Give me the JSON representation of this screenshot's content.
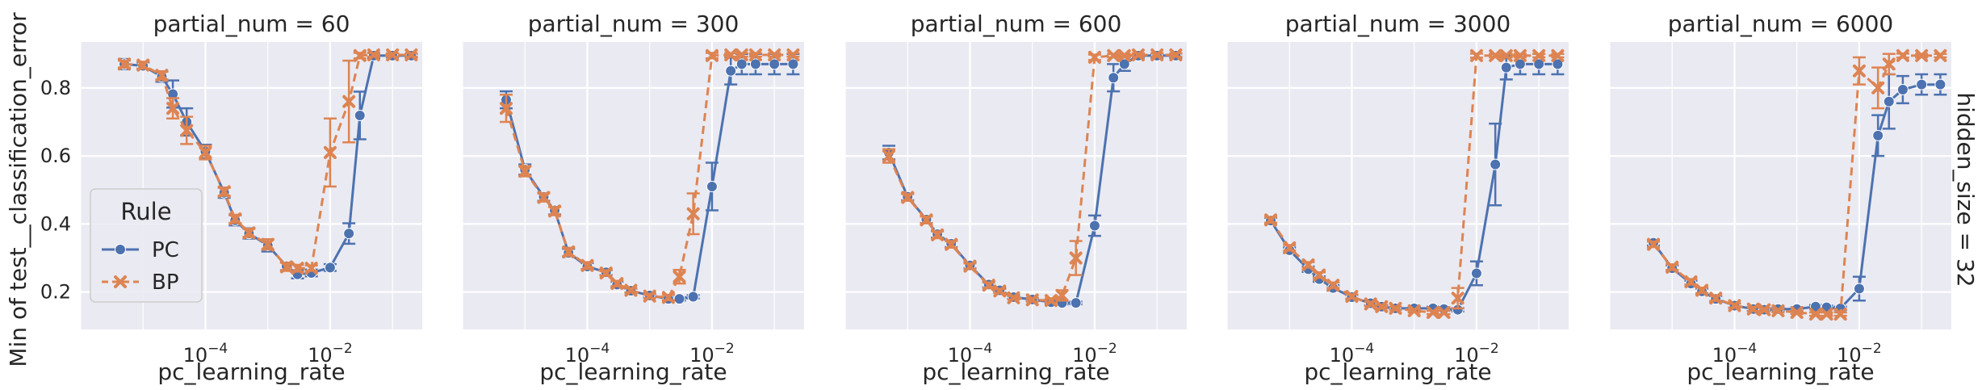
{
  "colors": {
    "panel_bg": "#EAEAF2",
    "grid": "#FFFFFF",
    "PC": "#4C72B0",
    "BP": "#DD8452",
    "text": "#262626"
  },
  "ylabel": "Min of test__classification_error",
  "row_label": "hidden_size = 32",
  "legend": {
    "title": "Rule",
    "entries": [
      {
        "name": "PC",
        "marker": "circle",
        "dash": "solid"
      },
      {
        "name": "BP",
        "marker": "x",
        "dash": "dashed"
      }
    ]
  },
  "chart_data": [
    {
      "type": "line",
      "title": "partial_num = 60",
      "xlabel": "pc_learning_rate",
      "xscale": "log",
      "xlim": [
        1e-06,
        0.3
      ],
      "ylim": [
        0.09,
        0.935
      ],
      "xticks": [
        {
          "v": 0.0001,
          "base": "10",
          "exp": "−4"
        },
        {
          "v": 0.01,
          "base": "10",
          "exp": "−2"
        }
      ],
      "yticks": [
        {
          "v": 0.2,
          "label": "0.2"
        },
        {
          "v": 0.4,
          "label": "0.4"
        },
        {
          "v": 0.6,
          "label": "0.6"
        },
        {
          "v": 0.8,
          "label": "0.8"
        }
      ],
      "series": [
        {
          "name": "PC",
          "x": [
            5e-06,
            1e-05,
            2e-05,
            3e-05,
            5e-05,
            0.0001,
            0.0002,
            0.0003,
            0.0005,
            0.001,
            0.002,
            0.003,
            0.005,
            0.01,
            0.02,
            0.03,
            0.05,
            0.1,
            0.2
          ],
          "y": [
            0.87,
            0.865,
            0.833,
            0.782,
            0.7,
            0.613,
            0.492,
            0.411,
            0.372,
            0.337,
            0.276,
            0.252,
            0.256,
            0.272,
            0.372,
            0.719,
            0.895,
            0.895,
            0.895
          ],
          "err": [
            0.015,
            0.01,
            0.015,
            0.04,
            0.04,
            0.02,
            0.015,
            0.015,
            0.015,
            0.018,
            0.012,
            0.012,
            0.01,
            0.01,
            0.03,
            0.07,
            0.008,
            0.005,
            0.005
          ]
        },
        {
          "name": "BP",
          "x": [
            5e-06,
            1e-05,
            2e-05,
            3e-05,
            5e-05,
            0.0001,
            0.0002,
            0.0003,
            0.0005,
            0.001,
            0.002,
            0.003,
            0.005,
            0.01,
            0.02,
            0.03,
            0.05,
            0.1,
            0.2
          ],
          "y": [
            0.87,
            0.867,
            0.837,
            0.74,
            0.675,
            0.61,
            0.495,
            0.415,
            0.374,
            0.34,
            0.274,
            0.27,
            0.27,
            0.61,
            0.76,
            0.895,
            0.897,
            0.897,
            0.897
          ],
          "err": [
            0.01,
            0.01,
            0.012,
            0.03,
            0.04,
            0.02,
            0.012,
            0.012,
            0.012,
            0.015,
            0.012,
            0.01,
            0.008,
            0.1,
            0.12,
            0.008,
            0.005,
            0.005,
            0.005
          ]
        }
      ]
    },
    {
      "type": "line",
      "title": "partial_num = 300",
      "xlabel": "pc_learning_rate",
      "xscale": "log",
      "xlim": [
        1e-06,
        0.3
      ],
      "ylim": [
        0.09,
        0.935
      ],
      "xticks": [
        {
          "v": 0.0001,
          "base": "10",
          "exp": "−4"
        },
        {
          "v": 0.01,
          "base": "10",
          "exp": "−2"
        }
      ],
      "yticks": [
        {
          "v": 0.2,
          "label": ""
        },
        {
          "v": 0.4,
          "label": ""
        },
        {
          "v": 0.6,
          "label": ""
        },
        {
          "v": 0.8,
          "label": ""
        }
      ],
      "series": [
        {
          "name": "PC",
          "x": [
            5e-06,
            1e-05,
            2e-05,
            3e-05,
            5e-05,
            0.0001,
            0.0002,
            0.0003,
            0.0005,
            0.001,
            0.002,
            0.003,
            0.005,
            0.01,
            0.02,
            0.03,
            0.05,
            0.1,
            0.2
          ],
          "y": [
            0.765,
            0.56,
            0.48,
            0.44,
            0.315,
            0.275,
            0.258,
            0.222,
            0.204,
            0.19,
            0.18,
            0.18,
            0.186,
            0.51,
            0.85,
            0.87,
            0.87,
            0.87,
            0.87
          ],
          "err": [
            0.025,
            0.015,
            0.012,
            0.012,
            0.012,
            0.01,
            0.008,
            0.008,
            0.006,
            0.006,
            0.005,
            0.005,
            0.005,
            0.07,
            0.04,
            0.03,
            0.03,
            0.03,
            0.03
          ]
        },
        {
          "name": "BP",
          "x": [
            5e-06,
            1e-05,
            2e-05,
            3e-05,
            5e-05,
            0.0001,
            0.0002,
            0.0003,
            0.0005,
            0.001,
            0.002,
            0.003,
            0.005,
            0.01,
            0.02,
            0.03,
            0.05,
            0.1,
            0.2
          ],
          "y": [
            0.74,
            0.555,
            0.478,
            0.438,
            0.318,
            0.278,
            0.256,
            0.225,
            0.205,
            0.188,
            0.184,
            0.245,
            0.43,
            0.895,
            0.897,
            0.897,
            0.897,
            0.897,
            0.897
          ],
          "err": [
            0.04,
            0.015,
            0.012,
            0.012,
            0.012,
            0.01,
            0.008,
            0.008,
            0.006,
            0.006,
            0.008,
            0.02,
            0.06,
            0.008,
            0.005,
            0.005,
            0.005,
            0.005,
            0.005
          ]
        }
      ]
    },
    {
      "type": "line",
      "title": "partial_num = 600",
      "xlabel": "pc_learning_rate",
      "xscale": "log",
      "xlim": [
        1e-06,
        0.3
      ],
      "ylim": [
        0.09,
        0.935
      ],
      "xticks": [
        {
          "v": 0.0001,
          "base": "10",
          "exp": "−4"
        },
        {
          "v": 0.01,
          "base": "10",
          "exp": "−2"
        }
      ],
      "yticks": [
        {
          "v": 0.2,
          "label": ""
        },
        {
          "v": 0.4,
          "label": ""
        },
        {
          "v": 0.6,
          "label": ""
        },
        {
          "v": 0.8,
          "label": ""
        }
      ],
      "series": [
        {
          "name": "PC",
          "x": [
            5e-06,
            1e-05,
            2e-05,
            3e-05,
            5e-05,
            0.0001,
            0.0002,
            0.0003,
            0.0005,
            0.001,
            0.002,
            0.003,
            0.005,
            0.01,
            0.02,
            0.03,
            0.05,
            0.1,
            0.2
          ],
          "y": [
            0.61,
            0.48,
            0.413,
            0.37,
            0.342,
            0.278,
            0.222,
            0.205,
            0.185,
            0.178,
            0.17,
            0.168,
            0.168,
            0.395,
            0.83,
            0.87,
            0.895,
            0.895,
            0.895
          ],
          "err": [
            0.02,
            0.01,
            0.01,
            0.01,
            0.01,
            0.008,
            0.008,
            0.006,
            0.005,
            0.005,
            0.004,
            0.004,
            0.004,
            0.03,
            0.04,
            0.02,
            0.006,
            0.006,
            0.006
          ]
        },
        {
          "name": "BP",
          "x": [
            5e-06,
            1e-05,
            2e-05,
            3e-05,
            5e-05,
            0.0001,
            0.0002,
            0.0003,
            0.0005,
            0.001,
            0.002,
            0.003,
            0.005,
            0.01,
            0.02,
            0.03,
            0.05,
            0.1,
            0.2
          ],
          "y": [
            0.6,
            0.478,
            0.412,
            0.368,
            0.34,
            0.276,
            0.22,
            0.203,
            0.183,
            0.177,
            0.175,
            0.19,
            0.3,
            0.89,
            0.895,
            0.895,
            0.897,
            0.897,
            0.897
          ],
          "err": [
            0.02,
            0.01,
            0.01,
            0.01,
            0.01,
            0.008,
            0.008,
            0.006,
            0.005,
            0.005,
            0.006,
            0.015,
            0.05,
            0.008,
            0.005,
            0.005,
            0.005,
            0.005,
            0.005
          ]
        }
      ]
    },
    {
      "type": "line",
      "title": "partial_num = 3000",
      "xlabel": "pc_learning_rate",
      "xscale": "log",
      "xlim": [
        1e-06,
        0.3
      ],
      "ylim": [
        0.09,
        0.935
      ],
      "xticks": [
        {
          "v": 0.0001,
          "base": "10",
          "exp": "−4"
        },
        {
          "v": 0.01,
          "base": "10",
          "exp": "−2"
        }
      ],
      "yticks": [
        {
          "v": 0.2,
          "label": ""
        },
        {
          "v": 0.4,
          "label": ""
        },
        {
          "v": 0.6,
          "label": ""
        },
        {
          "v": 0.8,
          "label": ""
        }
      ],
      "series": [
        {
          "name": "PC",
          "x": [
            5e-06,
            1e-05,
            2e-05,
            3e-05,
            5e-05,
            0.0001,
            0.0002,
            0.0003,
            0.0005,
            0.001,
            0.002,
            0.003,
            0.005,
            0.01,
            0.02,
            0.03,
            0.05,
            0.1,
            0.2
          ],
          "y": [
            0.41,
            0.323,
            0.267,
            0.238,
            0.212,
            0.185,
            0.167,
            0.157,
            0.152,
            0.152,
            0.152,
            0.15,
            0.148,
            0.255,
            0.575,
            0.86,
            0.87,
            0.87,
            0.87
          ],
          "err": [
            0.008,
            0.008,
            0.008,
            0.008,
            0.008,
            0.006,
            0.006,
            0.005,
            0.005,
            0.005,
            0.005,
            0.005,
            0.005,
            0.035,
            0.12,
            0.035,
            0.03,
            0.03,
            0.03
          ]
        },
        {
          "name": "BP",
          "x": [
            5e-06,
            1e-05,
            2e-05,
            3e-05,
            5e-05,
            0.0001,
            0.0002,
            0.0003,
            0.0005,
            0.001,
            0.002,
            0.003,
            0.005,
            0.01,
            0.02,
            0.03,
            0.05,
            0.1,
            0.2
          ],
          "y": [
            0.412,
            0.33,
            0.28,
            0.25,
            0.22,
            0.187,
            0.165,
            0.157,
            0.152,
            0.145,
            0.14,
            0.14,
            0.182,
            0.895,
            0.895,
            0.895,
            0.895,
            0.895,
            0.895
          ],
          "err": [
            0.008,
            0.008,
            0.008,
            0.008,
            0.008,
            0.006,
            0.006,
            0.005,
            0.005,
            0.005,
            0.005,
            0.005,
            0.03,
            0.006,
            0.005,
            0.005,
            0.005,
            0.005,
            0.005
          ]
        }
      ]
    },
    {
      "type": "line",
      "title": "partial_num = 6000",
      "xlabel": "pc_learning_rate",
      "xscale": "log",
      "xlim": [
        1e-06,
        0.3
      ],
      "ylim": [
        0.09,
        0.935
      ],
      "xticks": [
        {
          "v": 0.0001,
          "base": "10",
          "exp": "−4"
        },
        {
          "v": 0.01,
          "base": "10",
          "exp": "−2"
        }
      ],
      "yticks": [
        {
          "v": 0.2,
          "label": ""
        },
        {
          "v": 0.4,
          "label": ""
        },
        {
          "v": 0.6,
          "label": ""
        },
        {
          "v": 0.8,
          "label": ""
        }
      ],
      "series": [
        {
          "name": "PC",
          "x": [
            5e-06,
            1e-05,
            2e-05,
            3e-05,
            5e-05,
            0.0001,
            0.0002,
            0.0003,
            0.0005,
            0.001,
            0.002,
            0.003,
            0.005,
            0.01,
            0.02,
            0.03,
            0.05,
            0.1,
            0.2
          ],
          "y": [
            0.345,
            0.27,
            0.225,
            0.202,
            0.18,
            0.16,
            0.15,
            0.148,
            0.15,
            0.15,
            0.157,
            0.155,
            0.152,
            0.21,
            0.66,
            0.76,
            0.795,
            0.81,
            0.81
          ],
          "err": [
            0.008,
            0.008,
            0.008,
            0.008,
            0.008,
            0.006,
            0.006,
            0.005,
            0.005,
            0.005,
            0.005,
            0.005,
            0.005,
            0.035,
            0.06,
            0.08,
            0.04,
            0.03,
            0.03
          ]
        },
        {
          "name": "BP",
          "x": [
            5e-06,
            1e-05,
            2e-05,
            3e-05,
            5e-05,
            0.0001,
            0.0002,
            0.0003,
            0.0005,
            0.001,
            0.002,
            0.003,
            0.005,
            0.01,
            0.02,
            0.03,
            0.05,
            0.1,
            0.2
          ],
          "y": [
            0.34,
            0.273,
            0.23,
            0.205,
            0.182,
            0.16,
            0.15,
            0.148,
            0.145,
            0.14,
            0.135,
            0.135,
            0.135,
            0.85,
            0.8,
            0.87,
            0.895,
            0.895,
            0.895
          ],
          "err": [
            0.008,
            0.008,
            0.008,
            0.008,
            0.008,
            0.006,
            0.006,
            0.005,
            0.005,
            0.005,
            0.005,
            0.005,
            0.005,
            0.04,
            0.06,
            0.03,
            0.006,
            0.005,
            0.005
          ]
        }
      ]
    }
  ]
}
